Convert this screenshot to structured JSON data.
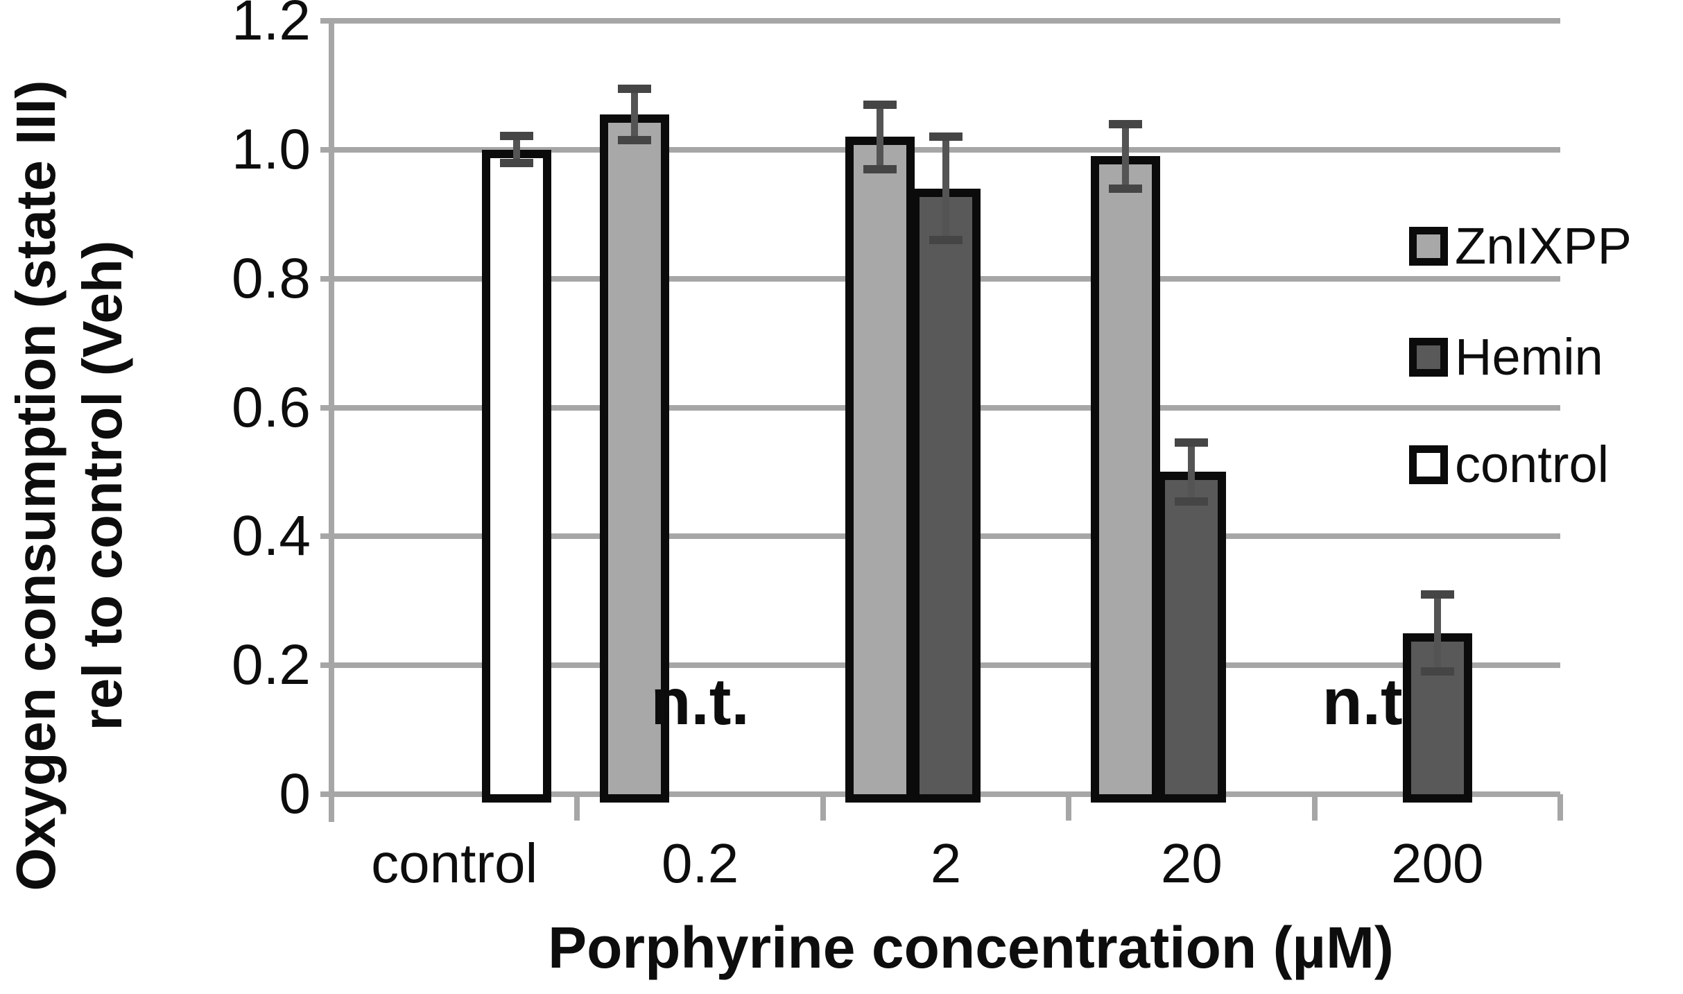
{
  "chart_data": {
    "type": "bar",
    "xlabel": "Porphyrine concentration (µM)",
    "ylabel_line1": "Oxygen consumption (state III)",
    "ylabel_line2": "rel to control (Veh)",
    "categories": [
      "control",
      "0.2",
      "2",
      "20",
      "200"
    ],
    "y_ticks": [
      "1.2",
      "1.0",
      "0.8",
      "0.6",
      "0.4",
      "0.2",
      "0"
    ],
    "ylim": [
      0,
      1.2
    ],
    "grid": true,
    "legend_position": "right",
    "not_tested_label": "n.t.",
    "series": [
      {
        "name": "ZnIXPP",
        "color": "#a8a8a8",
        "values": [
          null,
          1.055,
          1.02,
          0.99,
          null
        ],
        "errors": [
          null,
          0.04,
          0.05,
          0.05,
          null
        ],
        "not_tested": [
          false,
          false,
          false,
          false,
          true
        ]
      },
      {
        "name": "Hemin",
        "color": "#595959",
        "values": [
          null,
          null,
          0.94,
          0.5,
          0.25
        ],
        "errors": [
          null,
          null,
          0.08,
          0.046,
          0.06
        ],
        "not_tested": [
          false,
          true,
          false,
          false,
          false
        ]
      },
      {
        "name": "control",
        "color": "#ffffff",
        "values": [
          1.0,
          null,
          null,
          null,
          null
        ],
        "errors": [
          0.021,
          null,
          null,
          null,
          null
        ],
        "not_tested": [
          false,
          false,
          false,
          false,
          false
        ]
      }
    ],
    "legend": [
      {
        "name": "ZnIXPP",
        "color": "#a8a8a8"
      },
      {
        "name": "Hemin",
        "color": "#595959"
      },
      {
        "name": "control",
        "color": "#ffffff"
      }
    ]
  },
  "style": {
    "gridline_color": "#a6a6a6",
    "bar_border_color": "#0b0b0b",
    "error_bar_color": "#545454"
  }
}
